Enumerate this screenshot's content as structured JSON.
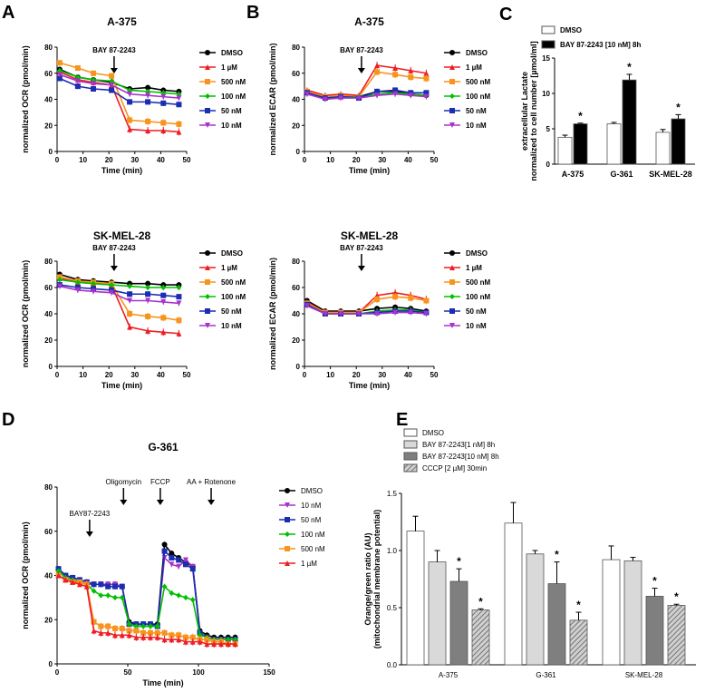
{
  "colors": {
    "DMSO": "#000000",
    "1 µM": "#ee1c24",
    "500 nM": "#f7941d",
    "100 nM": "#00c000",
    "50 nM": "#1b2db0",
    "10 nM": "#a833cc"
  },
  "panel_labels": [
    "A",
    "B",
    "C",
    "D",
    "E"
  ],
  "chart_data": [
    {
      "id": "A1",
      "type": "line",
      "title": "A-375",
      "xlabel": "Time (min)",
      "ylabel": "normalized OCR (pmol/min)",
      "xlim": [
        0,
        50
      ],
      "ylim": [
        0,
        80
      ],
      "xticks": [
        0,
        10,
        20,
        30,
        40,
        50
      ],
      "yticks": [
        0,
        20,
        40,
        60,
        80
      ],
      "annotation": "BAY 87-2243",
      "arrow_x": 22,
      "x": [
        1,
        8,
        14,
        21,
        28,
        35,
        41,
        47
      ],
      "series": [
        {
          "name": "DMSO",
          "values": [
            63,
            57,
            55,
            53,
            48,
            49,
            47,
            46
          ]
        },
        {
          "name": "1 µM",
          "values": [
            61,
            55,
            53,
            51,
            17,
            16,
            16,
            15
          ]
        },
        {
          "name": "500 nM",
          "values": [
            68,
            64,
            60,
            58,
            24,
            23,
            22,
            21
          ]
        },
        {
          "name": "100 nM",
          "values": [
            62,
            57,
            55,
            54,
            47,
            46,
            45,
            44
          ]
        },
        {
          "name": "50 nM",
          "values": [
            56,
            50,
            48,
            47,
            38,
            38,
            37,
            36
          ]
        },
        {
          "name": "10 nM",
          "values": [
            59,
            54,
            52,
            51,
            44,
            43,
            42,
            41
          ]
        }
      ]
    },
    {
      "id": "A2",
      "type": "line",
      "title": "SK-MEL-28",
      "xlabel": "Time (min)",
      "ylabel": "normalized OCR (pmol/min)",
      "xlim": [
        0,
        50
      ],
      "ylim": [
        0,
        80
      ],
      "xticks": [
        0,
        10,
        20,
        30,
        40,
        50
      ],
      "yticks": [
        0,
        20,
        40,
        60,
        80
      ],
      "annotation": "BAY 87-2243",
      "arrow_x": 22,
      "x": [
        1,
        8,
        14,
        21,
        28,
        35,
        41,
        47
      ],
      "series": [
        {
          "name": "DMSO",
          "values": [
            70,
            66,
            65,
            64,
            63,
            63,
            62,
            62
          ]
        },
        {
          "name": "1 µM",
          "values": [
            67,
            64,
            63,
            62,
            30,
            27,
            26,
            25
          ]
        },
        {
          "name": "500 nM",
          "values": [
            68,
            65,
            64,
            63,
            40,
            38,
            37,
            35
          ]
        },
        {
          "name": "100 nM",
          "values": [
            66,
            64,
            63,
            62,
            61,
            60,
            60,
            60
          ]
        },
        {
          "name": "50 nM",
          "values": [
            62,
            60,
            59,
            58,
            55,
            55,
            54,
            53
          ]
        },
        {
          "name": "10 nM",
          "values": [
            61,
            58,
            57,
            56,
            50,
            50,
            49,
            48
          ]
        }
      ]
    },
    {
      "id": "B1",
      "type": "line",
      "title": "A-375",
      "xlabel": "Time (min)",
      "ylabel": "normalized ECAR (pmol/min)",
      "xlim": [
        0,
        50
      ],
      "ylim": [
        0,
        80
      ],
      "xticks": [
        0,
        10,
        20,
        30,
        40,
        50
      ],
      "yticks": [
        0,
        20,
        40,
        60,
        80
      ],
      "annotation": "BAY 87-2243",
      "arrow_x": 22,
      "x": [
        1,
        8,
        14,
        21,
        28,
        35,
        41,
        47
      ],
      "series": [
        {
          "name": "DMSO",
          "values": [
            46,
            42,
            43,
            42,
            46,
            46,
            44,
            43
          ]
        },
        {
          "name": "1 µM",
          "values": [
            47,
            43,
            44,
            43,
            66,
            64,
            62,
            60
          ]
        },
        {
          "name": "500 nM",
          "values": [
            46,
            42,
            43,
            42,
            61,
            59,
            57,
            56
          ]
        },
        {
          "name": "100 nM",
          "values": [
            45,
            41,
            42,
            42,
            44,
            45,
            44,
            43
          ]
        },
        {
          "name": "50 nM",
          "values": [
            45,
            41,
            42,
            41,
            46,
            47,
            45,
            45
          ]
        },
        {
          "name": "10 nM",
          "values": [
            44,
            40,
            41,
            41,
            43,
            44,
            43,
            42
          ]
        }
      ]
    },
    {
      "id": "B2",
      "type": "line",
      "title": "SK-MEL-28",
      "xlabel": "Time (min)",
      "ylabel": "normalized ECAR (pmol/min)",
      "xlim": [
        0,
        50
      ],
      "ylim": [
        0,
        80
      ],
      "xticks": [
        0,
        10,
        20,
        30,
        40,
        50
      ],
      "yticks": [
        0,
        20,
        40,
        60,
        80
      ],
      "annotation": "BAY 87-2243",
      "arrow_x": 22,
      "x": [
        1,
        8,
        14,
        21,
        28,
        35,
        41,
        47
      ],
      "series": [
        {
          "name": "DMSO",
          "values": [
            50,
            42,
            42,
            42,
            44,
            45,
            44,
            42
          ]
        },
        {
          "name": "1 µM",
          "values": [
            49,
            41,
            41,
            41,
            54,
            56,
            54,
            51
          ]
        },
        {
          "name": "500 nM",
          "values": [
            48,
            41,
            41,
            41,
            51,
            53,
            52,
            50
          ]
        },
        {
          "name": "100 nM",
          "values": [
            47,
            40,
            40,
            40,
            42,
            43,
            43,
            41
          ]
        },
        {
          "name": "50 nM",
          "values": [
            47,
            40,
            40,
            40,
            41,
            42,
            42,
            41
          ]
        },
        {
          "name": "10 nM",
          "values": [
            46,
            40,
            40,
            40,
            40,
            41,
            41,
            40
          ]
        }
      ]
    },
    {
      "id": "C",
      "type": "bar",
      "ylabel": "extracellular Lactate normalized to cell number [µmol/ml]",
      "ylim": [
        0,
        15
      ],
      "yticks": [
        0,
        5,
        10,
        15
      ],
      "categories": [
        "A-375",
        "G-361",
        "SK-MEL-28"
      ],
      "series": [
        {
          "name": "DMSO",
          "fill": "#ffffff",
          "values": [
            3.8,
            5.7,
            4.5
          ],
          "errors": [
            0.3,
            0.2,
            0.4
          ]
        },
        {
          "name": "BAY 87-2243 [10 nM] 8h",
          "fill": "#000000",
          "values": [
            5.7,
            11.9,
            6.4
          ],
          "errors": [
            0.1,
            0.8,
            0.6
          ]
        }
      ],
      "significance": [
        [
          false,
          true
        ],
        [
          false,
          true
        ],
        [
          false,
          true
        ]
      ],
      "star": "*"
    },
    {
      "id": "D",
      "type": "line",
      "title": "G-361",
      "xlabel": "Time (min)",
      "ylabel": "normalized OCR (pmol/min)",
      "xlim": [
        0,
        150
      ],
      "ylim": [
        0,
        80
      ],
      "xticks": [
        0,
        50,
        100,
        150
      ],
      "yticks": [
        0,
        20,
        40,
        60,
        80
      ],
      "annotations": [
        {
          "label": "BAY87-2243",
          "x": 23
        },
        {
          "label": "Oligomycin",
          "x": 47
        },
        {
          "label": "FCCP",
          "x": 73
        },
        {
          "label": "AA + Rotenone",
          "x": 109
        }
      ],
      "x": [
        1,
        6,
        11,
        16,
        21,
        26,
        31,
        36,
        41,
        46,
        51,
        56,
        61,
        66,
        71,
        76,
        81,
        86,
        91,
        96,
        101,
        106,
        111,
        116,
        121,
        126
      ],
      "series": [
        {
          "name": "DMSO",
          "values": [
            43,
            40,
            39,
            38,
            37,
            36,
            36,
            36,
            36,
            35,
            19,
            18,
            18,
            18,
            18,
            54,
            50,
            48,
            46,
            44,
            15,
            13,
            12,
            12,
            12,
            12
          ]
        },
        {
          "name": "10 nM",
          "values": [
            42,
            39,
            38,
            37,
            36,
            36,
            36,
            36,
            36,
            35,
            18,
            17,
            17,
            17,
            17,
            48,
            45,
            44,
            47,
            44,
            14,
            12,
            11,
            11,
            11,
            11
          ]
        },
        {
          "name": "50 nM",
          "values": [
            43,
            40,
            39,
            38,
            37,
            36,
            36,
            35,
            35,
            35,
            18,
            18,
            18,
            18,
            17,
            51,
            48,
            47,
            45,
            43,
            14,
            12,
            11,
            11,
            11,
            11
          ]
        },
        {
          "name": "100 nM",
          "values": [
            42,
            39,
            38,
            37,
            36,
            33,
            31,
            31,
            30,
            30,
            18,
            17,
            17,
            17,
            17,
            35,
            32,
            31,
            30,
            29,
            13,
            12,
            11,
            11,
            11,
            11
          ]
        },
        {
          "name": "500 nM",
          "values": [
            40,
            38,
            37,
            37,
            36,
            19,
            17,
            17,
            16,
            16,
            15,
            15,
            14,
            14,
            14,
            14,
            13,
            13,
            12,
            12,
            11,
            11,
            10,
            10,
            9,
            9
          ]
        },
        {
          "name": "1 µM",
          "values": [
            40,
            38,
            37,
            36,
            35,
            15,
            14,
            14,
            13,
            13,
            13,
            12,
            12,
            12,
            12,
            11,
            11,
            11,
            10,
            10,
            10,
            9,
            9,
            9,
            9,
            9
          ]
        }
      ]
    },
    {
      "id": "E",
      "type": "bar",
      "ylabel": "Orange/green ratio (AU) (mitochondrial membrane potential)",
      "ylim": [
        0,
        1.5
      ],
      "yticks": [
        "0.0",
        "0.5",
        "1.0",
        "1.5"
      ],
      "categories": [
        "A-375",
        "G-361",
        "SK-MEL-28"
      ],
      "series": [
        {
          "name": "DMSO",
          "fill": "#ffffff",
          "values": [
            1.17,
            1.24,
            0.92
          ],
          "errors": [
            0.13,
            0.18,
            0.12
          ]
        },
        {
          "name": "BAY 87-2243[1 nM] 8h",
          "fill": "#d9d9d9",
          "values": [
            0.9,
            0.97,
            0.91
          ],
          "errors": [
            0.1,
            0.03,
            0.03
          ]
        },
        {
          "name": "BAY 87-2243[10 nM] 8h",
          "fill": "#7f7f7f",
          "values": [
            0.73,
            0.71,
            0.6
          ],
          "errors": [
            0.11,
            0.19,
            0.07
          ]
        },
        {
          "name": "CCCP [2 µM] 30min",
          "fill": "hatch",
          "values": [
            0.48,
            0.39,
            0.52
          ],
          "errors": [
            0.01,
            0.07,
            0.01
          ]
        }
      ],
      "significance": [
        [
          false,
          false,
          true,
          true
        ],
        [
          false,
          false,
          true,
          true
        ],
        [
          false,
          false,
          true,
          true
        ]
      ],
      "star": "*"
    }
  ]
}
